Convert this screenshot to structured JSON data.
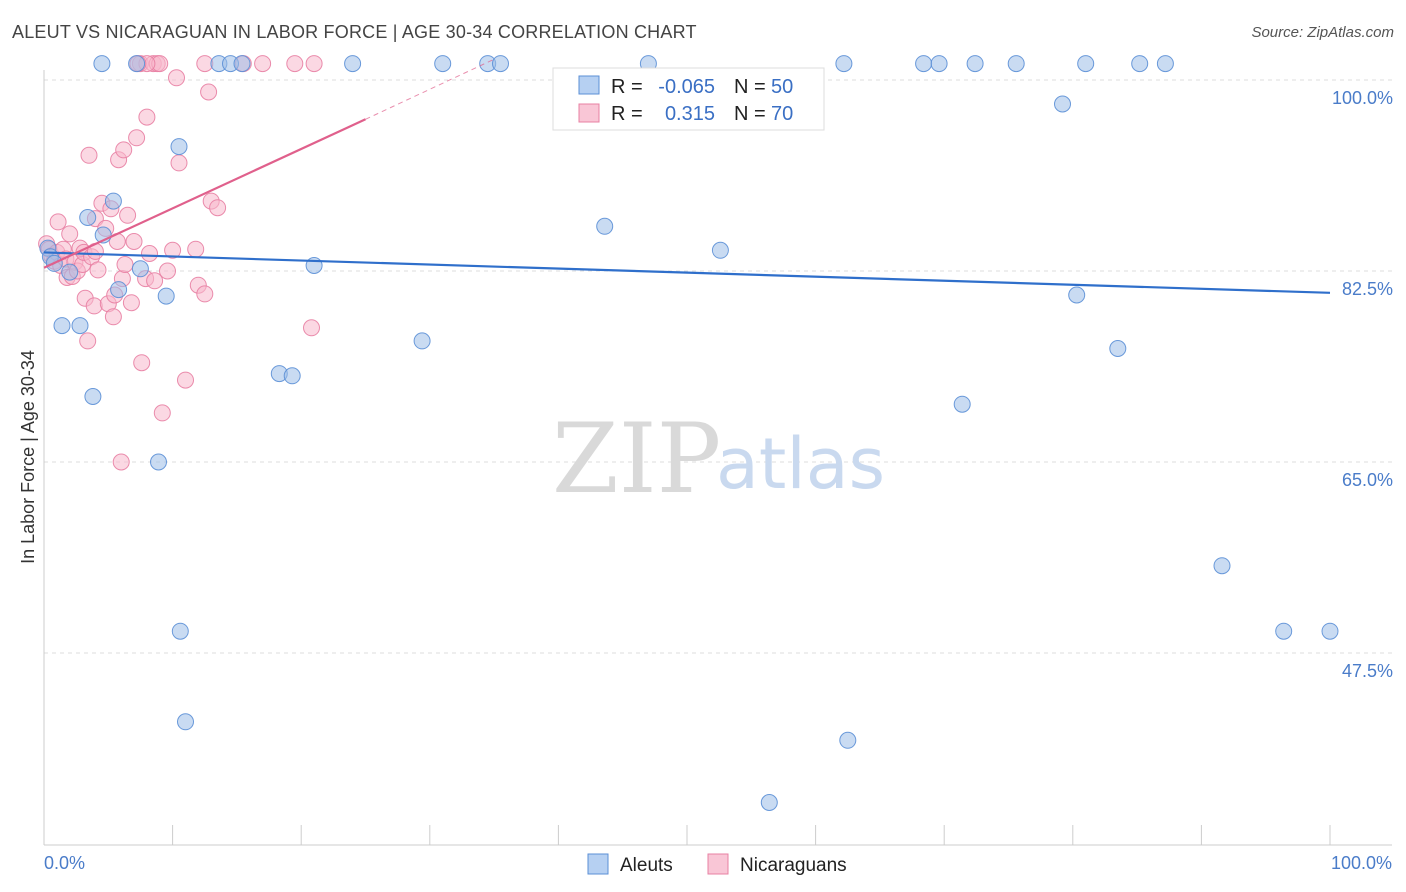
{
  "chart_data": {
    "type": "scatter",
    "title": "ALEUT VS NICARAGUAN IN LABOR FORCE | AGE 30-34 CORRELATION CHART",
    "source": "Source: ZipAtlas.com",
    "ylabel": "In Labor Force | Age 30-34",
    "xlim": [
      0,
      100
    ],
    "ylim": [
      30,
      101.5
    ],
    "x_tick_labels": [
      "0.0%",
      "100.0%"
    ],
    "y_ticks": [
      {
        "value": 100.0,
        "label": "100.0%"
      },
      {
        "value": 82.5,
        "label": "82.5%"
      },
      {
        "value": 65.0,
        "label": "65.0%"
      },
      {
        "value": 47.5,
        "label": "47.5%"
      }
    ],
    "legend": {
      "r_label": "R =",
      "n_label": "N =",
      "entries": [
        {
          "name": "Aleuts",
          "r": "-0.065",
          "n": "50"
        },
        {
          "name": "Nicaraguans",
          "r": "0.315",
          "n": "70"
        }
      ]
    },
    "watermark": {
      "part1": "ZIP",
      "part2": "atlas"
    },
    "series": [
      {
        "name": "Aleuts",
        "color": "#9dbde8",
        "edge": "#5b8fd6",
        "line_color": "#2f6fcb",
        "trend": {
          "x": [
            0,
            100
          ],
          "y": [
            84.2,
            80.5
          ]
        },
        "points": [
          [
            0.3,
            84.6
          ],
          [
            0.5,
            83.8
          ],
          [
            0.8,
            83.2
          ],
          [
            1.4,
            77.5
          ],
          [
            2.0,
            82.4
          ],
          [
            2.8,
            77.5
          ],
          [
            3.4,
            87.4
          ],
          [
            3.8,
            71.0
          ],
          [
            4.6,
            85.8
          ],
          [
            5.4,
            88.9
          ],
          [
            5.8,
            80.8
          ],
          [
            4.5,
            101.5
          ],
          [
            7.2,
            101.5
          ],
          [
            7.5,
            82.7
          ],
          [
            8.9,
            65.0
          ],
          [
            9.5,
            80.2
          ],
          [
            10.5,
            93.9
          ],
          [
            10.6,
            49.5
          ],
          [
            11.0,
            41.2
          ],
          [
            13.6,
            101.5
          ],
          [
            14.5,
            101.5
          ],
          [
            15.4,
            101.5
          ],
          [
            18.3,
            73.1
          ],
          [
            19.3,
            72.9
          ],
          [
            21.0,
            83.0
          ],
          [
            24.0,
            101.5
          ],
          [
            29.4,
            76.1
          ],
          [
            31.0,
            101.5
          ],
          [
            34.5,
            101.5
          ],
          [
            35.5,
            101.5
          ],
          [
            43.6,
            86.6
          ],
          [
            47.0,
            101.5
          ],
          [
            52.6,
            84.4
          ],
          [
            56.4,
            33.8
          ],
          [
            62.2,
            101.5
          ],
          [
            62.5,
            39.5
          ],
          [
            68.4,
            101.5
          ],
          [
            69.6,
            101.5
          ],
          [
            71.4,
            70.3
          ],
          [
            72.4,
            101.5
          ],
          [
            75.6,
            101.5
          ],
          [
            79.2,
            97.8
          ],
          [
            80.3,
            80.3
          ],
          [
            81.0,
            101.5
          ],
          [
            83.5,
            75.4
          ],
          [
            85.2,
            101.5
          ],
          [
            87.2,
            101.5
          ],
          [
            91.6,
            55.5
          ],
          [
            96.4,
            49.5
          ],
          [
            100.0,
            49.5
          ]
        ]
      },
      {
        "name": "Nicaraguans",
        "color": "#f7b8cc",
        "edge": "#e880a3",
        "line_color": "#e0608c",
        "trend": {
          "x": [
            0,
            25
          ],
          "y": [
            82.8,
            96.4
          ]
        },
        "trend_ext": {
          "x": [
            25,
            35
          ],
          "y": [
            96.4,
            101.9
          ]
        },
        "points": [
          [
            0.2,
            85.0
          ],
          [
            0.4,
            84.5
          ],
          [
            0.6,
            83.9
          ],
          [
            0.8,
            83.4
          ],
          [
            1.0,
            84.2
          ],
          [
            1.1,
            87.0
          ],
          [
            1.3,
            83.0
          ],
          [
            1.5,
            84.5
          ],
          [
            1.7,
            83.6
          ],
          [
            1.8,
            81.9
          ],
          [
            2.0,
            85.9
          ],
          [
            2.2,
            82.0
          ],
          [
            2.4,
            83.3
          ],
          [
            2.6,
            82.5
          ],
          [
            2.8,
            84.6
          ],
          [
            3.0,
            83.1
          ],
          [
            3.1,
            84.2
          ],
          [
            3.2,
            80.0
          ],
          [
            3.4,
            76.1
          ],
          [
            3.5,
            93.1
          ],
          [
            3.7,
            83.8
          ],
          [
            3.9,
            79.3
          ],
          [
            4.0,
            87.3
          ],
          [
            4.2,
            82.6
          ],
          [
            4.5,
            88.7
          ],
          [
            4.8,
            86.4
          ],
          [
            5.0,
            79.5
          ],
          [
            5.2,
            88.2
          ],
          [
            5.4,
            78.3
          ],
          [
            5.5,
            80.3
          ],
          [
            5.7,
            85.2
          ],
          [
            5.8,
            92.7
          ],
          [
            6.1,
            81.8
          ],
          [
            6.2,
            93.6
          ],
          [
            6.3,
            83.1
          ],
          [
            6.5,
            87.6
          ],
          [
            6.8,
            79.6
          ],
          [
            7.0,
            85.2
          ],
          [
            7.2,
            94.7
          ],
          [
            7.5,
            101.5
          ],
          [
            7.6,
            74.1
          ],
          [
            7.9,
            81.8
          ],
          [
            8.0,
            96.6
          ],
          [
            8.2,
            84.1
          ],
          [
            8.5,
            101.5
          ],
          [
            8.6,
            81.6
          ],
          [
            8.8,
            101.5
          ],
          [
            9.0,
            101.5
          ],
          [
            9.2,
            69.5
          ],
          [
            9.6,
            82.5
          ],
          [
            10.0,
            84.4
          ],
          [
            10.3,
            100.2
          ],
          [
            10.5,
            92.4
          ],
          [
            11.0,
            72.5
          ],
          [
            11.8,
            84.5
          ],
          [
            12.0,
            81.2
          ],
          [
            12.5,
            80.4
          ],
          [
            12.8,
            98.9
          ],
          [
            13.0,
            88.9
          ],
          [
            13.5,
            88.3
          ],
          [
            6.0,
            65.0
          ],
          [
            12.5,
            101.5
          ],
          [
            15.5,
            101.5
          ],
          [
            17.0,
            101.5
          ],
          [
            19.5,
            101.5
          ],
          [
            21.0,
            101.5
          ],
          [
            20.8,
            77.3
          ],
          [
            8.0,
            101.5
          ],
          [
            7.3,
            101.5
          ],
          [
            4.0,
            84.3
          ]
        ]
      }
    ]
  }
}
